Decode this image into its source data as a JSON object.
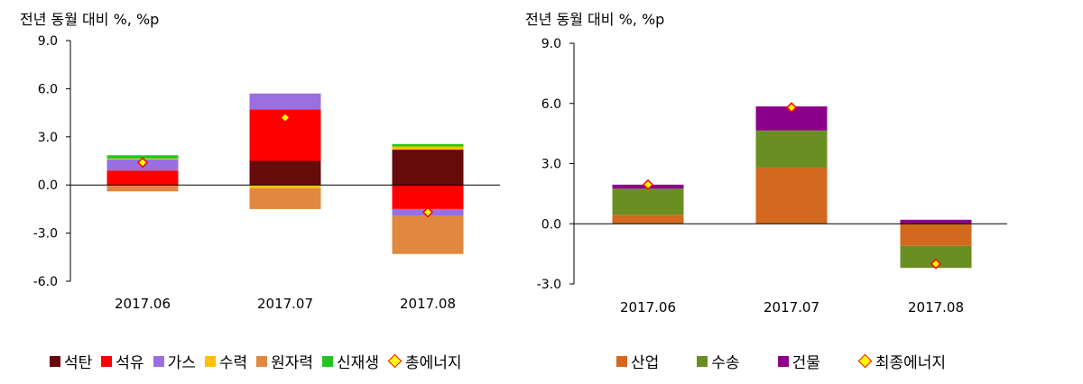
{
  "chart_data": [
    {
      "type": "bar",
      "stacked": true,
      "unit_label": "전년 동월 대비 %, %p",
      "categories": [
        "2017.06",
        "2017.07",
        "2017.08"
      ],
      "yticks": [
        "9.0",
        "6.0",
        "3.0",
        "0.0",
        "-3.0",
        "-6.0"
      ],
      "ylim": [
        -6,
        9
      ],
      "series": [
        {
          "name": "석탄",
          "color": "#660a0a",
          "values": [
            0.0,
            1.5,
            2.2
          ]
        },
        {
          "name": "석유",
          "color": "#ff0000",
          "values": [
            0.9,
            3.2,
            -1.5
          ]
        },
        {
          "name": "가스",
          "color": "#9a6fe0",
          "values": [
            0.7,
            1.0,
            -0.4
          ]
        },
        {
          "name": "수력",
          "color": "#ffc000",
          "values": [
            0.05,
            -0.2,
            0.2
          ]
        },
        {
          "name": "원자력",
          "color": "#e08840",
          "values": [
            -0.4,
            -1.3,
            -2.4
          ]
        },
        {
          "name": "신재생",
          "color": "#22c422",
          "values": [
            0.2,
            0.0,
            0.15
          ]
        }
      ],
      "total": {
        "name": "총에너지",
        "values": [
          1.4,
          4.2,
          -1.7
        ]
      }
    },
    {
      "type": "bar",
      "stacked": true,
      "unit_label": "전년 동월 대비 %, %p",
      "categories": [
        "2017.06",
        "2017.07",
        "2017.08"
      ],
      "yticks": [
        "9.0",
        "6.0",
        "3.0",
        "0.0",
        "-3.0"
      ],
      "ylim": [
        -3,
        9
      ],
      "series": [
        {
          "name": "산업",
          "color": "#d2691e",
          "values": [
            0.45,
            2.8,
            -1.1
          ]
        },
        {
          "name": "수송",
          "color": "#6b8e23",
          "values": [
            1.3,
            1.85,
            -1.1
          ]
        },
        {
          "name": "건물",
          "color": "#8b008b",
          "values": [
            0.2,
            1.2,
            0.2
          ]
        }
      ],
      "total": {
        "name": "최종에너지",
        "values": [
          1.95,
          5.8,
          -2.0
        ]
      }
    }
  ]
}
